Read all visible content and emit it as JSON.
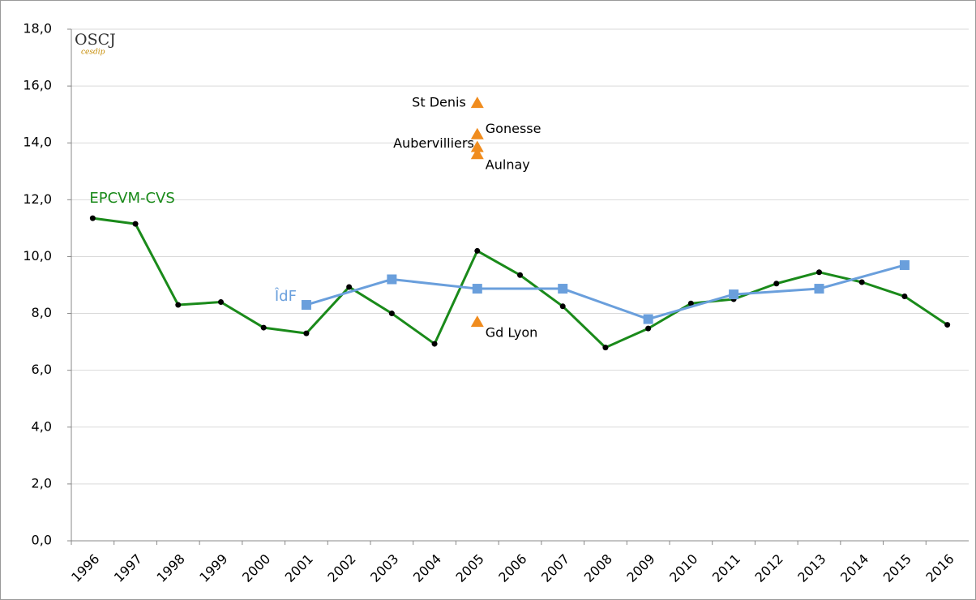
{
  "chart_data": {
    "type": "line",
    "logo": {
      "title": "OSCJ",
      "subtitle": "cesdip"
    },
    "categories": [
      "1996",
      "1997",
      "1998",
      "1999",
      "2000",
      "2001",
      "2002",
      "2003",
      "2004",
      "2005",
      "2006",
      "2007",
      "2008",
      "2009",
      "2010",
      "2011",
      "2012",
      "2013",
      "2014",
      "2015",
      "2016"
    ],
    "series": [
      {
        "name": "EPCVM-CVS",
        "color": "#1a8a1a",
        "marker_color": "#000000",
        "values": [
          11.35,
          11.15,
          8.3,
          8.4,
          7.5,
          7.3,
          8.93,
          8.0,
          6.93,
          10.2,
          9.35,
          8.25,
          6.8,
          7.47,
          8.35,
          8.5,
          9.05,
          9.45,
          9.1,
          8.6,
          7.6
        ]
      },
      {
        "name": "ÎdF",
        "color": "#6a9fdc",
        "marker_color": "#6a9fdc",
        "x": [
          "2001",
          "2003",
          "2005",
          "2007",
          "2009",
          "2011",
          "2013",
          "2015"
        ],
        "values": [
          8.3,
          9.2,
          8.87,
          8.87,
          7.8,
          8.67,
          8.87,
          9.7
        ]
      }
    ],
    "points": {
      "color": "#f08c1e",
      "x": [
        "2005",
        "2005",
        "2005",
        "2005",
        "2005"
      ],
      "labels": [
        "St Denis",
        "Gonesse",
        "Aubervilliers",
        "Aulnay",
        "Gd Lyon"
      ],
      "values": [
        15.4,
        14.3,
        13.85,
        13.6,
        7.7
      ]
    },
    "ylim": [
      0,
      18
    ],
    "yticks": [
      {
        "value": 0,
        "label": "0,0"
      },
      {
        "value": 2,
        "label": "2,0"
      },
      {
        "value": 4,
        "label": "4,0"
      },
      {
        "value": 6,
        "label": "6,0"
      },
      {
        "value": 8,
        "label": "8,0"
      },
      {
        "value": 10,
        "label": "10,0"
      },
      {
        "value": 12,
        "label": "12,0"
      },
      {
        "value": 14,
        "label": "14,0"
      },
      {
        "value": 16,
        "label": "16,0"
      },
      {
        "value": 18,
        "label": "18,0"
      }
    ],
    "grid": true
  }
}
